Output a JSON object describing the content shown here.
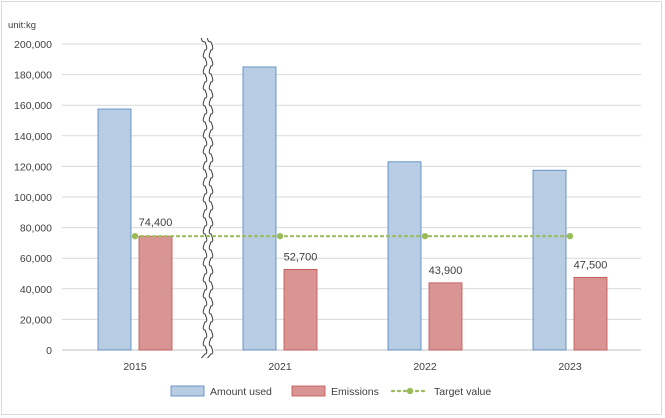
{
  "chart_data": {
    "type": "bar",
    "unit_label": "unit:kg",
    "categories": [
      "2015",
      "2021",
      "2022",
      "2023"
    ],
    "series": [
      {
        "name": "Amount used",
        "values": [
          157500,
          185000,
          123000,
          117500
        ],
        "color": "#b8cce4",
        "stroke": "#4f81bd"
      },
      {
        "name": "Emissions",
        "values": [
          74400,
          52700,
          43900,
          47500
        ],
        "labels": [
          "74,400",
          "52,700",
          "43,900",
          "47,500"
        ],
        "color": "#d99594",
        "stroke": "#c0504d"
      }
    ],
    "target": {
      "name": "Target value",
      "value": 74400,
      "color": "#9bbb59"
    },
    "ylim": [
      0,
      200000
    ],
    "yticks": [
      0,
      20000,
      40000,
      60000,
      80000,
      100000,
      120000,
      140000,
      160000,
      180000,
      200000
    ],
    "ytick_labels": [
      "0",
      "20,000",
      "40,000",
      "60,000",
      "80,000",
      "100,000",
      "120,000",
      "140,000",
      "160,000",
      "180,000",
      "200,000"
    ],
    "axis_break_after": "2015",
    "grid": true,
    "legend_position": "bottom"
  }
}
